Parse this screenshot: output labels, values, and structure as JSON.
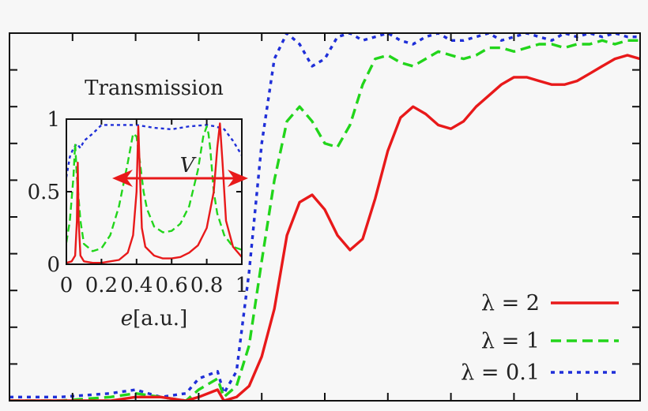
{
  "chart_data": [
    {
      "type": "line",
      "title": "",
      "xlabel": "",
      "ylabel": "",
      "xlim": [
        0,
        1
      ],
      "ylim": [
        0,
        1
      ],
      "legend": "bottom-right",
      "series": [
        {
          "name": "λ = 2",
          "color": "#e8191a",
          "dash": "solid",
          "x": [
            0,
            0.08,
            0.16,
            0.2,
            0.24,
            0.28,
            0.3,
            0.33,
            0.34,
            0.36,
            0.38,
            0.4,
            0.42,
            0.44,
            0.46,
            0.48,
            0.5,
            0.52,
            0.54,
            0.56,
            0.58,
            0.6,
            0.62,
            0.64,
            0.66,
            0.68,
            0.7,
            0.72,
            0.74,
            0.76,
            0.78,
            0.8,
            0.82,
            0.84,
            0.86,
            0.88,
            0.9,
            0.92,
            0.94,
            0.96,
            0.98,
            1.0
          ],
          "y": [
            0,
            0.0,
            0.0,
            0.01,
            0.01,
            0.0,
            0.01,
            0.03,
            0.0,
            0.01,
            0.04,
            0.12,
            0.25,
            0.45,
            0.54,
            0.56,
            0.52,
            0.45,
            0.41,
            0.44,
            0.55,
            0.68,
            0.77,
            0.8,
            0.78,
            0.75,
            0.74,
            0.76,
            0.8,
            0.83,
            0.86,
            0.88,
            0.88,
            0.87,
            0.86,
            0.86,
            0.87,
            0.89,
            0.91,
            0.93,
            0.94,
            0.93
          ]
        },
        {
          "name": "λ = 1",
          "color": "#22d51b",
          "dash": "dashed",
          "x": [
            0,
            0.08,
            0.16,
            0.2,
            0.24,
            0.28,
            0.3,
            0.33,
            0.34,
            0.36,
            0.38,
            0.4,
            0.42,
            0.44,
            0.46,
            0.48,
            0.5,
            0.52,
            0.54,
            0.56,
            0.58,
            0.6,
            0.62,
            0.64,
            0.66,
            0.68,
            0.7,
            0.72,
            0.74,
            0.76,
            0.78,
            0.8,
            0.82,
            0.84,
            0.86,
            0.88,
            0.9,
            0.92,
            0.94,
            0.96,
            0.98,
            1.0
          ],
          "y": [
            0,
            0.0,
            0.01,
            0.02,
            0.01,
            0.0,
            0.03,
            0.06,
            0.01,
            0.04,
            0.15,
            0.38,
            0.6,
            0.76,
            0.8,
            0.76,
            0.7,
            0.69,
            0.75,
            0.86,
            0.93,
            0.94,
            0.92,
            0.91,
            0.93,
            0.95,
            0.94,
            0.93,
            0.94,
            0.96,
            0.96,
            0.95,
            0.96,
            0.97,
            0.97,
            0.96,
            0.97,
            0.97,
            0.98,
            0.97,
            0.98,
            0.98
          ]
        },
        {
          "name": "λ = 0.1",
          "color": "#1f2fd8",
          "dash": "dotted",
          "x": [
            0,
            0.08,
            0.16,
            0.2,
            0.24,
            0.28,
            0.3,
            0.33,
            0.34,
            0.36,
            0.38,
            0.4,
            0.42,
            0.44,
            0.46,
            0.48,
            0.5,
            0.52,
            0.54,
            0.56,
            0.58,
            0.6,
            0.62,
            0.64,
            0.66,
            0.68,
            0.7,
            0.72,
            0.74,
            0.76,
            0.78,
            0.8,
            0.82,
            0.84,
            0.86,
            0.88,
            0.9,
            0.92,
            0.94,
            0.96,
            0.98,
            1.0
          ],
          "y": [
            0.01,
            0.01,
            0.02,
            0.03,
            0.01,
            0.02,
            0.06,
            0.08,
            0.02,
            0.08,
            0.35,
            0.7,
            0.93,
            1.0,
            0.97,
            0.91,
            0.93,
            0.99,
            1.0,
            0.98,
            0.99,
            1.0,
            0.98,
            0.97,
            0.99,
            1.0,
            0.98,
            0.98,
            0.99,
            1.0,
            0.98,
            0.99,
            1.0,
            0.99,
            0.98,
            1.0,
            0.99,
            1.0,
            0.99,
            1.0,
            0.99,
            0.99
          ]
        }
      ]
    },
    {
      "type": "line",
      "title": "Transmission",
      "xlabel_italic": "e",
      "xlabel_unit": "[a.u.]",
      "xlim": [
        0,
        1
      ],
      "ylim": [
        0,
        1
      ],
      "x_ticks": [
        "0",
        "0.2",
        "0.4",
        "0.6",
        "0.8",
        "1"
      ],
      "y_ticks": [
        "0",
        "0.5",
        "1"
      ],
      "annotation": "V",
      "series": [
        {
          "color": "#e8191a",
          "dash": "solid",
          "x": [
            0,
            0.03,
            0.05,
            0.06,
            0.065,
            0.07,
            0.08,
            0.1,
            0.15,
            0.2,
            0.25,
            0.3,
            0.35,
            0.38,
            0.4,
            0.41,
            0.42,
            0.43,
            0.45,
            0.5,
            0.55,
            0.6,
            0.65,
            0.7,
            0.75,
            0.8,
            0.84,
            0.86,
            0.875,
            0.89,
            0.91,
            0.95,
            1.0
          ],
          "y": [
            0.01,
            0.02,
            0.06,
            0.3,
            0.7,
            0.3,
            0.06,
            0.02,
            0.01,
            0.01,
            0.02,
            0.03,
            0.08,
            0.2,
            0.5,
            0.95,
            0.6,
            0.25,
            0.12,
            0.06,
            0.04,
            0.04,
            0.05,
            0.08,
            0.13,
            0.25,
            0.5,
            0.8,
            0.97,
            0.7,
            0.3,
            0.12,
            0.05
          ]
        },
        {
          "color": "#22d51b",
          "dash": "dashed",
          "x": [
            0,
            0.02,
            0.04,
            0.05,
            0.06,
            0.08,
            0.1,
            0.15,
            0.2,
            0.25,
            0.3,
            0.35,
            0.38,
            0.4,
            0.42,
            0.44,
            0.46,
            0.5,
            0.55,
            0.6,
            0.65,
            0.7,
            0.75,
            0.78,
            0.8,
            0.81,
            0.82,
            0.84,
            0.86,
            0.9,
            0.95,
            1.0
          ],
          "y": [
            0.15,
            0.3,
            0.6,
            0.83,
            0.6,
            0.3,
            0.14,
            0.09,
            0.11,
            0.2,
            0.4,
            0.7,
            0.9,
            0.88,
            0.7,
            0.5,
            0.38,
            0.26,
            0.22,
            0.23,
            0.28,
            0.4,
            0.65,
            0.88,
            0.95,
            0.9,
            0.8,
            0.5,
            0.35,
            0.2,
            0.12,
            0.1
          ]
        },
        {
          "color": "#1f2fd8",
          "dash": "dotted",
          "x": [
            0,
            0.02,
            0.04,
            0.06,
            0.08,
            0.1,
            0.15,
            0.2,
            0.3,
            0.4,
            0.5,
            0.6,
            0.7,
            0.8,
            0.85,
            0.9,
            0.95,
            1.0
          ],
          "y": [
            0.6,
            0.74,
            0.8,
            0.83,
            0.8,
            0.85,
            0.9,
            0.96,
            0.96,
            0.96,
            0.94,
            0.93,
            0.95,
            0.96,
            0.95,
            0.93,
            0.85,
            0.75
          ]
        }
      ]
    }
  ]
}
